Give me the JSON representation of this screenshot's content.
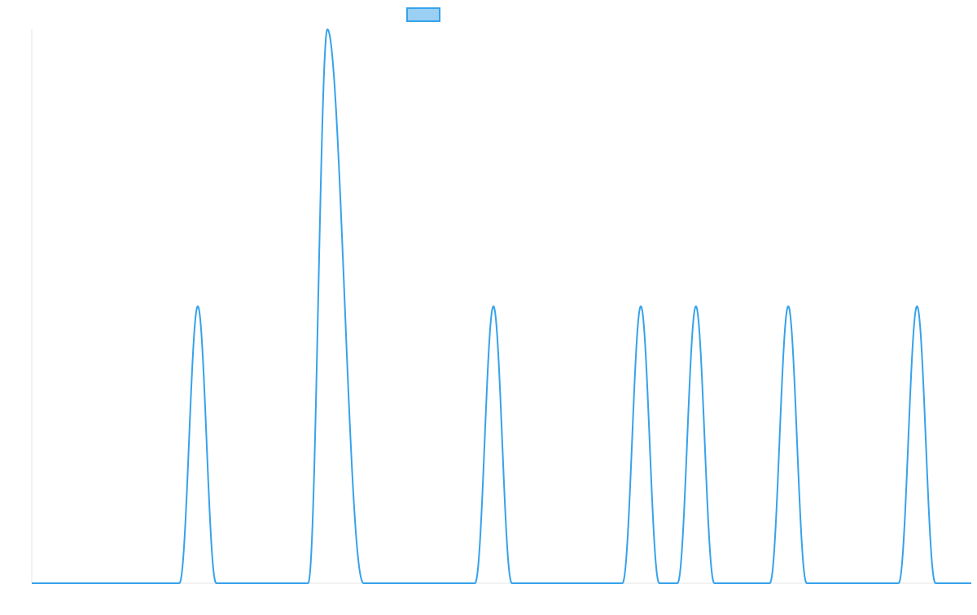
{
  "chart_data": {
    "type": "line",
    "title": "",
    "xlabel": "",
    "ylabel": "",
    "xlim": [
      0,
      1160
    ],
    "ylim": [
      0,
      2
    ],
    "grid": false,
    "legend": {
      "position": "top-center",
      "entries": [
        {
          "label": "",
          "swatch_fill": "#9BD0F5",
          "swatch_stroke": "#36A2EB"
        }
      ]
    },
    "series": [
      {
        "color": "#36A2EB",
        "kind": "peaks",
        "baseline": 0,
        "peaks": [
          {
            "center": 205,
            "height": 1,
            "left_width": 23,
            "right_width": 23
          },
          {
            "center": 365,
            "height": 2,
            "left_width": 24,
            "right_width": 45
          },
          {
            "center": 570,
            "height": 1,
            "left_width": 23,
            "right_width": 23
          },
          {
            "center": 752,
            "height": 1,
            "left_width": 23,
            "right_width": 23
          },
          {
            "center": 820,
            "height": 1,
            "left_width": 23,
            "right_width": 23
          },
          {
            "center": 934,
            "height": 1,
            "left_width": 23,
            "right_width": 23
          },
          {
            "center": 1093,
            "height": 1,
            "left_width": 23,
            "right_width": 23
          }
        ]
      }
    ]
  }
}
